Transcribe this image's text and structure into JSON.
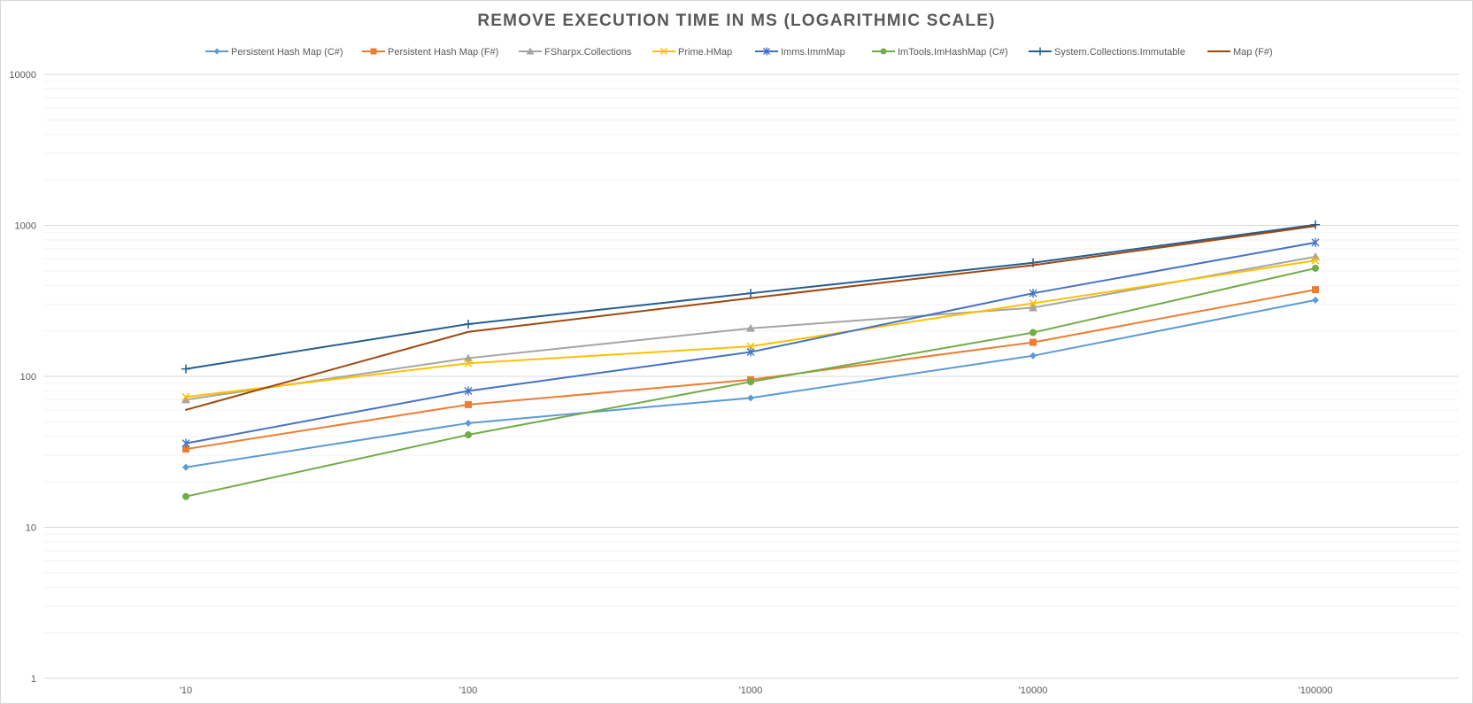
{
  "chart_data": {
    "type": "line",
    "title": "REMOVE EXECUTION TIME IN MS (LOGARITHMIC SCALE)",
    "xlabel": "",
    "ylabel": "",
    "categories": [
      "'10",
      "'100",
      "'1000",
      "'10000",
      "'100000"
    ],
    "y_scale": "log",
    "ylim": [
      1,
      10000
    ],
    "y_ticks": [
      "1",
      "10",
      "100",
      "1000",
      "10000"
    ],
    "grid": true,
    "legend_position": "top",
    "series": [
      {
        "name": "Persistent Hash Map (C#)",
        "color": "#5b9bd5",
        "marker": "diamond",
        "values": [
          25,
          49,
          72,
          137,
          320
        ]
      },
      {
        "name": "Persistent Hash Map (F#)",
        "color": "#ed7d31",
        "marker": "square",
        "values": [
          33,
          65,
          95,
          168,
          375
        ]
      },
      {
        "name": "FSharpx.Collections",
        "color": "#a5a5a5",
        "marker": "triangle",
        "values": [
          70,
          132,
          208,
          285,
          620
        ]
      },
      {
        "name": "Prime.HMap",
        "color": "#ffc000",
        "marker": "x",
        "values": [
          73,
          122,
          158,
          305,
          585
        ]
      },
      {
        "name": "Imms.ImmMap",
        "color": "#4472c4",
        "marker": "star",
        "values": [
          36,
          80,
          145,
          355,
          770
        ]
      },
      {
        "name": "ImTools.ImHashMap (C#)",
        "color": "#70ad47",
        "marker": "circle",
        "values": [
          16,
          41,
          92,
          195,
          520
        ]
      },
      {
        "name": "System.Collections.Immutable",
        "color": "#255e91",
        "marker": "plus",
        "values": [
          112,
          222,
          355,
          565,
          1010
        ]
      },
      {
        "name": "Map (F#)",
        "color": "#9e480e",
        "marker": "none",
        "values": [
          60,
          197,
          330,
          545,
          990
        ]
      }
    ]
  }
}
